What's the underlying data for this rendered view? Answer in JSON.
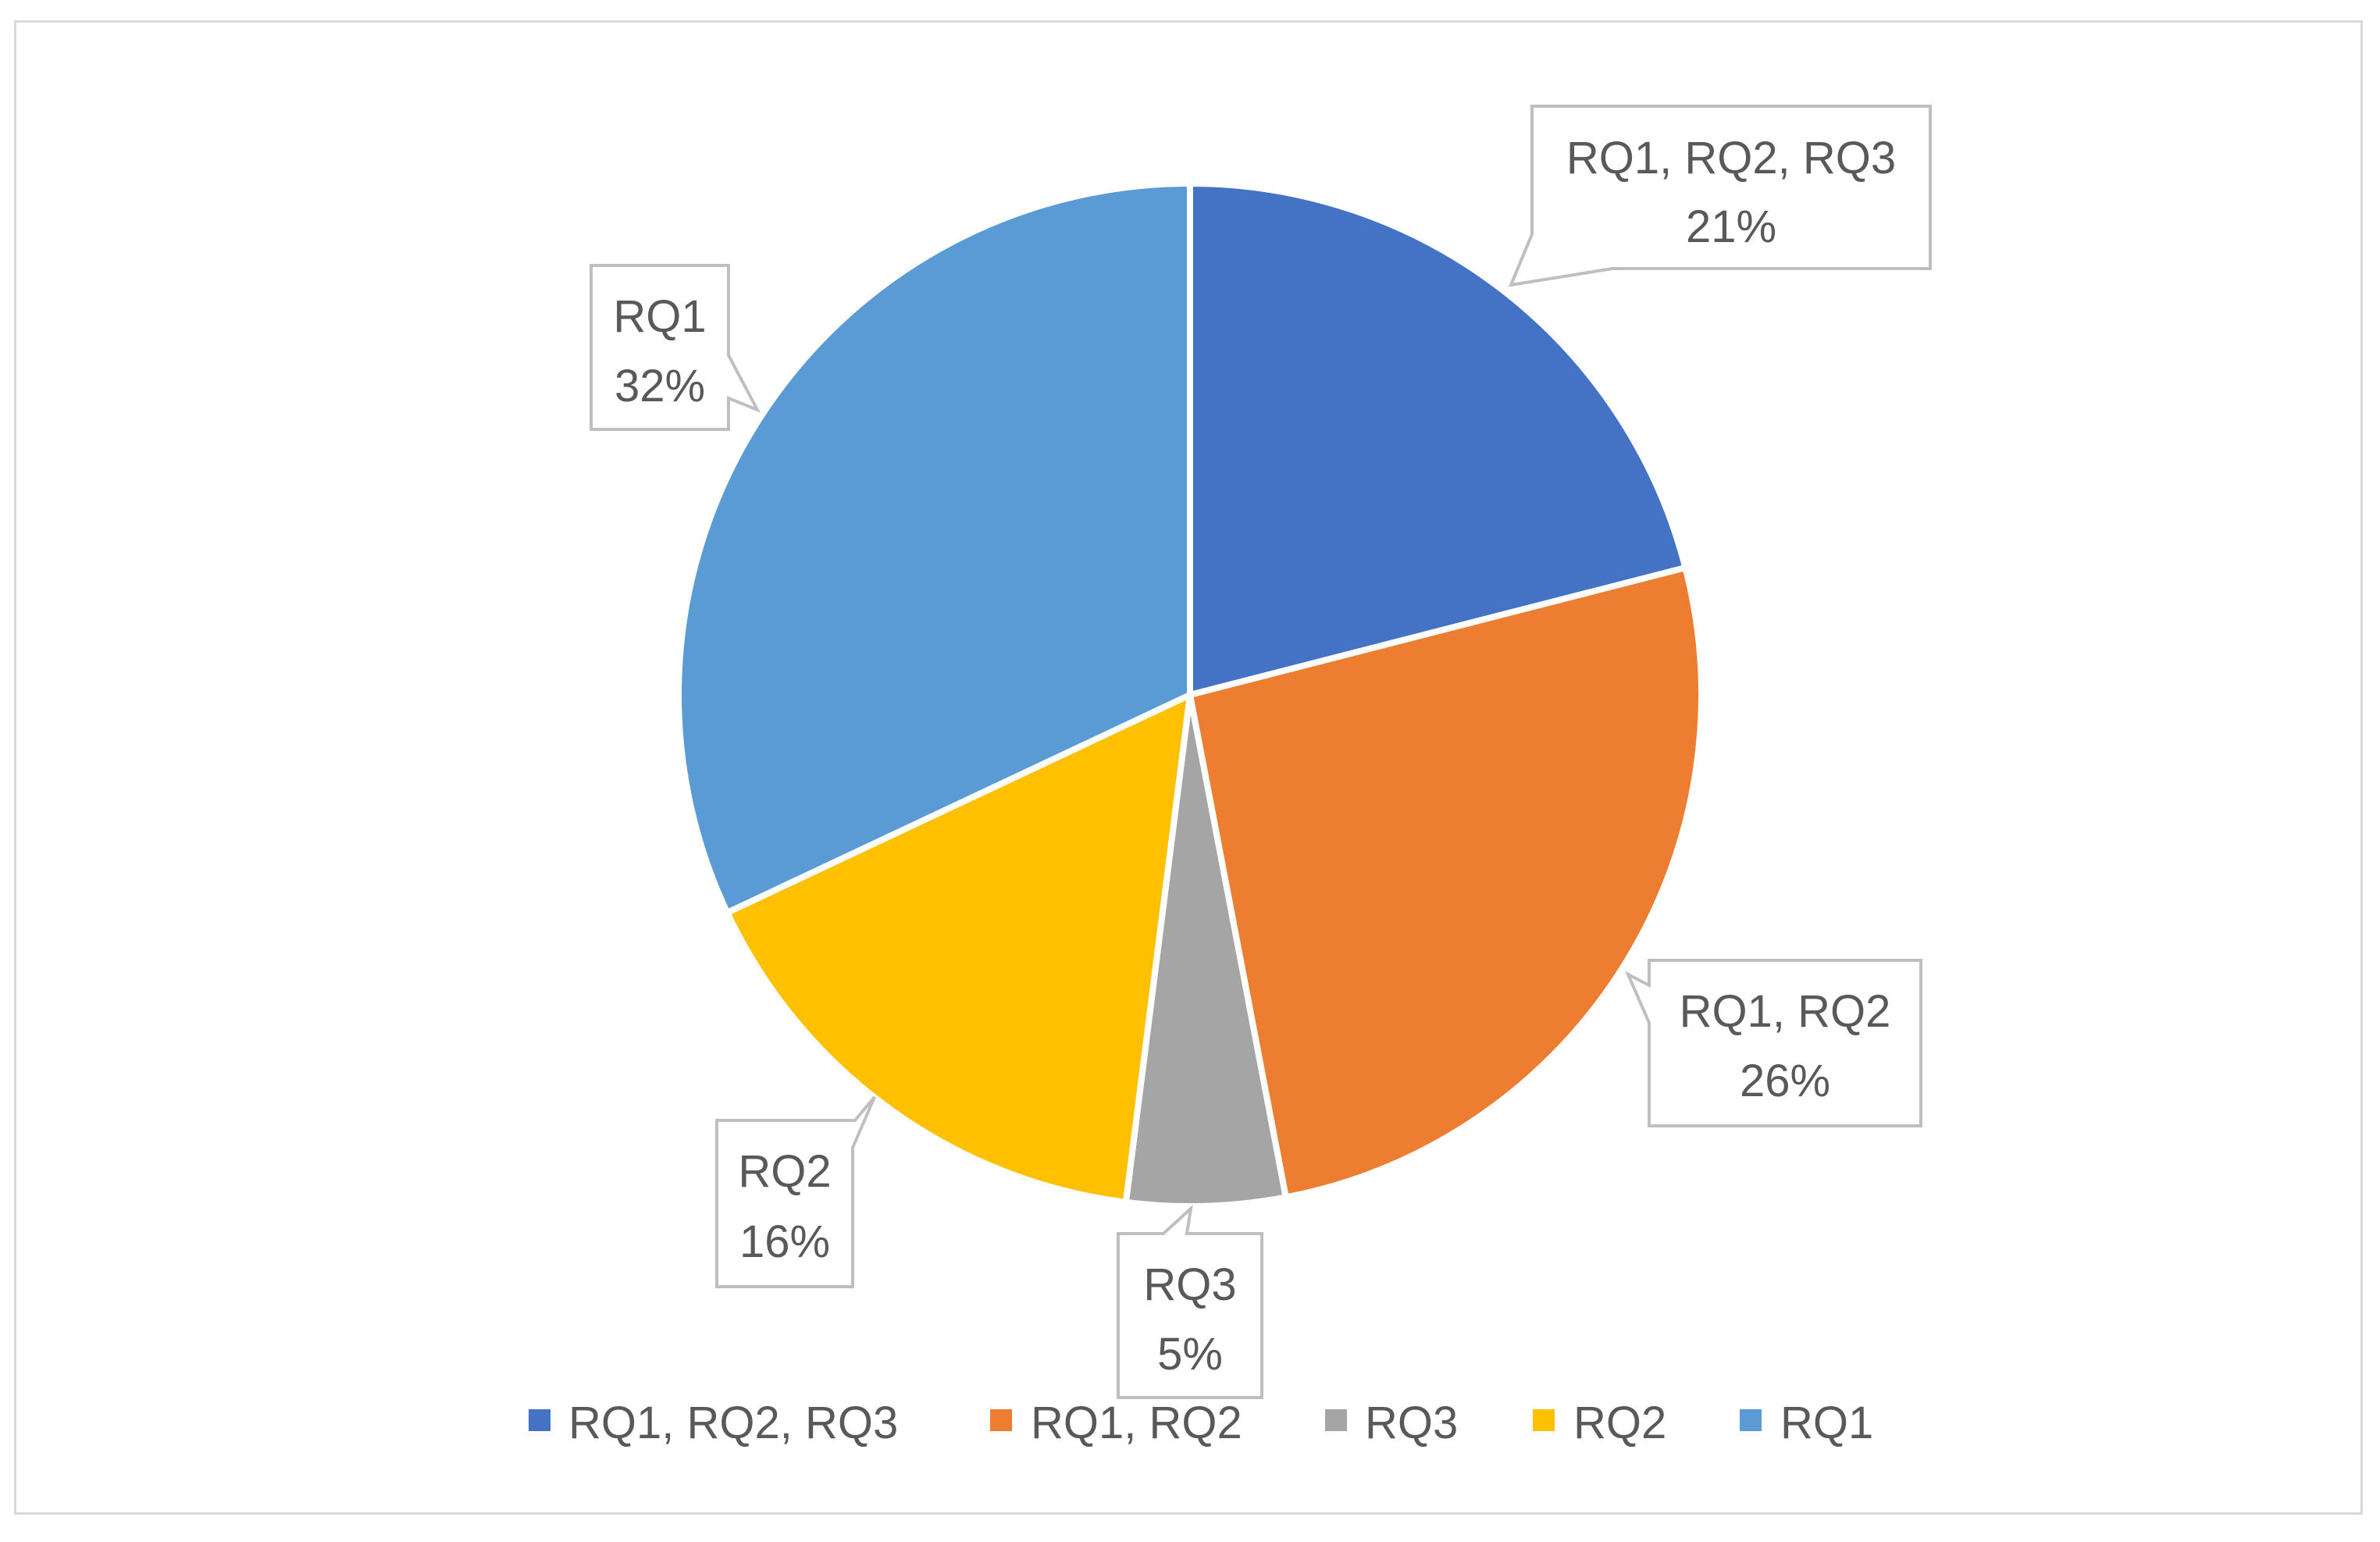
{
  "chart_data": {
    "type": "pie",
    "title": "",
    "categories": [
      "RQ1, RQ2, RQ3",
      "RQ1, RQ2",
      "RQ3",
      "RQ2",
      "RQ1"
    ],
    "values": [
      21,
      26,
      5,
      16,
      32
    ],
    "labels": [
      "21%",
      "26%",
      "5%",
      "16%",
      "32%"
    ],
    "colors": [
      "#4472C4",
      "#ED7D31",
      "#A5A5A5",
      "#FFC000",
      "#5B9BD5"
    ],
    "legend": {
      "position": "bottom",
      "entries": [
        "RQ1, RQ2, RQ3",
        "RQ1, RQ2",
        "RQ3",
        "RQ2",
        "RQ1"
      ]
    },
    "start_angle": "12 o'clock",
    "direction": "clockwise"
  }
}
